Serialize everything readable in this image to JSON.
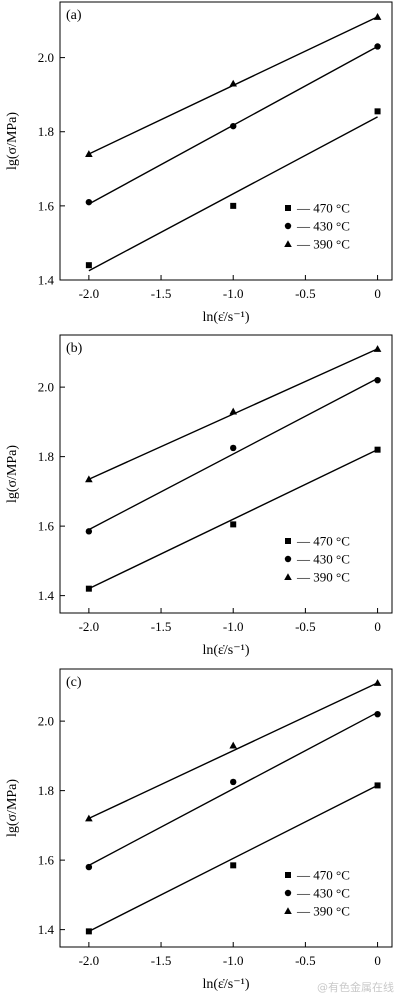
{
  "watermark": "@有色金属在线",
  "chart_data": [
    {
      "type": "scatter",
      "panel_label": "(a)",
      "xlabel": "ln(ε̇/s⁻¹)",
      "ylabel": "lg(σ/MPa)",
      "xlim": [
        -2.2,
        0.1
      ],
      "ylim": [
        1.4,
        2.15
      ],
      "xticks": [
        -2.0,
        -1.5,
        -1.0,
        -0.5,
        0
      ],
      "xtick_labels": [
        "-2.0",
        "-1.5",
        "-1.0",
        "-0.5",
        "0"
      ],
      "yticks": [
        1.4,
        1.6,
        1.8,
        2.0
      ],
      "ytick_labels": [
        "1.4",
        "1.6",
        "1.8",
        "2.0"
      ],
      "legend_position": "bottom-right",
      "series": [
        {
          "name": "470 °C",
          "marker": "square",
          "x": [
            -2,
            -1,
            0
          ],
          "y": [
            1.44,
            1.6,
            1.855
          ],
          "fit": [
            1.425,
            1.84
          ]
        },
        {
          "name": "430 °C",
          "marker": "circle",
          "x": [
            -2,
            -1,
            0
          ],
          "y": [
            1.61,
            1.815,
            2.03
          ],
          "fit": [
            1.605,
            2.03
          ]
        },
        {
          "name": "390 °C",
          "marker": "triangle",
          "x": [
            -2,
            -1,
            0
          ],
          "y": [
            1.74,
            1.93,
            2.11
          ],
          "fit": [
            1.74,
            2.11
          ]
        }
      ]
    },
    {
      "type": "scatter",
      "panel_label": "(b)",
      "xlabel": "ln(ε̇/s⁻¹)",
      "ylabel": "lg(σ/MPa)",
      "xlim": [
        -2.2,
        0.1
      ],
      "ylim": [
        1.35,
        2.15
      ],
      "xticks": [
        -2.0,
        -1.5,
        -1.0,
        -0.5,
        0
      ],
      "xtick_labels": [
        "-2.0",
        "-1.5",
        "-1.0",
        "-0.5",
        "0"
      ],
      "yticks": [
        1.4,
        1.6,
        1.8,
        2.0
      ],
      "ytick_labels": [
        "1.4",
        "1.6",
        "1.8",
        "2.0"
      ],
      "legend_position": "bottom-right",
      "series": [
        {
          "name": "470 °C",
          "marker": "square",
          "x": [
            -2,
            -1,
            0
          ],
          "y": [
            1.42,
            1.605,
            1.82
          ],
          "fit": [
            1.42,
            1.82
          ]
        },
        {
          "name": "430 °C",
          "marker": "circle",
          "x": [
            -2,
            -1,
            0
          ],
          "y": [
            1.585,
            1.825,
            2.02
          ],
          "fit": [
            1.59,
            2.025
          ]
        },
        {
          "name": "390 °C",
          "marker": "triangle",
          "x": [
            -2,
            -1,
            0
          ],
          "y": [
            1.735,
            1.93,
            2.11
          ],
          "fit": [
            1.735,
            2.11
          ]
        }
      ]
    },
    {
      "type": "scatter",
      "panel_label": "(c)",
      "xlabel": "ln(ε̇/s⁻¹)",
      "ylabel": "lg(σ/MPa)",
      "xlim": [
        -2.2,
        0.1
      ],
      "ylim": [
        1.35,
        2.15
      ],
      "xticks": [
        -2.0,
        -1.5,
        -1.0,
        -0.5,
        0
      ],
      "xtick_labels": [
        "-2.0",
        "-1.5",
        "-1.0",
        "-0.5",
        "0"
      ],
      "yticks": [
        1.4,
        1.6,
        1.8,
        2.0
      ],
      "ytick_labels": [
        "1.4",
        "1.6",
        "1.8",
        "2.0"
      ],
      "legend_position": "bottom-right",
      "series": [
        {
          "name": "470 °C",
          "marker": "square",
          "x": [
            -2,
            -1,
            0
          ],
          "y": [
            1.395,
            1.585,
            1.815
          ],
          "fit": [
            1.395,
            1.815
          ]
        },
        {
          "name": "430 °C",
          "marker": "circle",
          "x": [
            -2,
            -1,
            0
          ],
          "y": [
            1.58,
            1.825,
            2.02
          ],
          "fit": [
            1.585,
            2.025
          ]
        },
        {
          "name": "390 °C",
          "marker": "triangle",
          "x": [
            -2,
            -1,
            0
          ],
          "y": [
            1.72,
            1.93,
            2.11
          ],
          "fit": [
            1.72,
            2.11
          ]
        }
      ]
    }
  ]
}
